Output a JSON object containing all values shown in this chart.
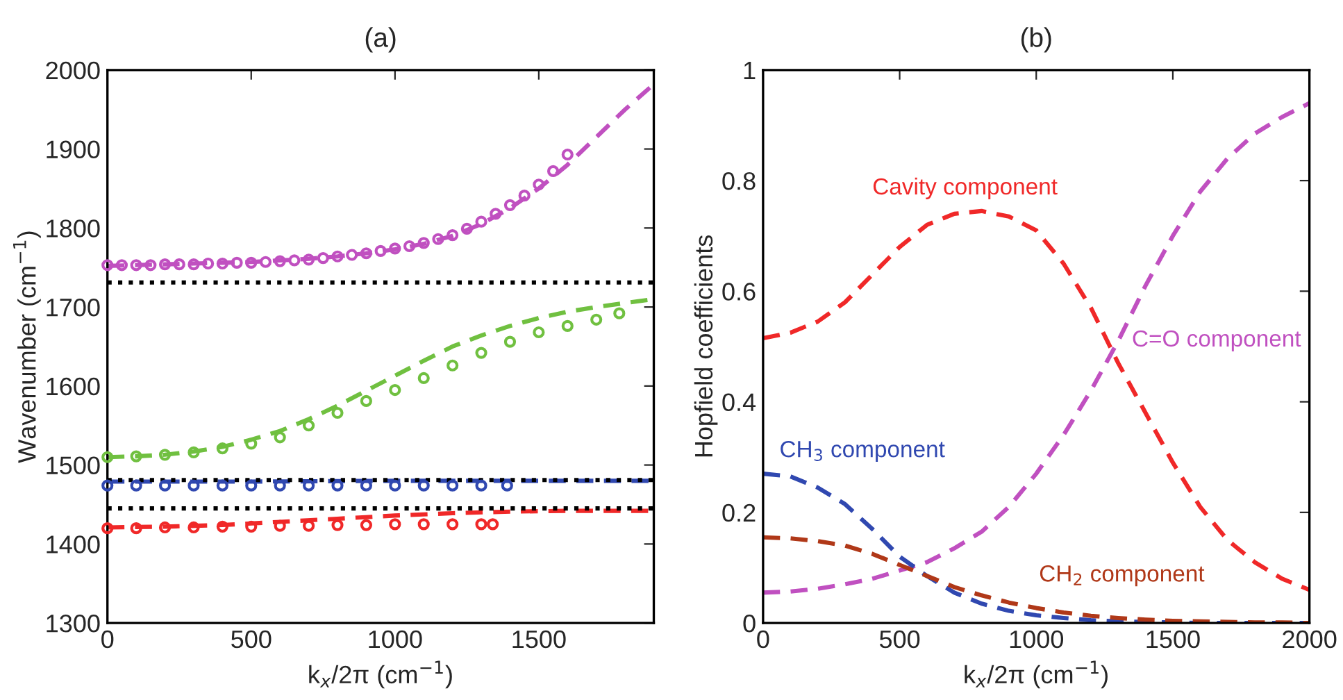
{
  "chart_data": [
    {
      "type": "line",
      "title": "(a)",
      "xlabel": "k$_{x}$/2π (cm$^{−1}$)",
      "ylabel": "Wavenumber (cm$^{−1}$)",
      "xlim": [
        0,
        1900
      ],
      "xticks": [
        0,
        500,
        1000,
        1500
      ],
      "ylim": [
        1300,
        2000
      ],
      "yticks": [
        1300,
        1400,
        1500,
        1600,
        1700,
        1800,
        1900,
        2000
      ],
      "grid": false,
      "legend": false,
      "ref_lines": [
        {
          "axis": "y",
          "value": 1731,
          "color": "#000000",
          "line_style": "dotted"
        },
        {
          "axis": "y",
          "value": 1481,
          "color": "#000000",
          "line_style": "dotted"
        },
        {
          "axis": "y",
          "value": 1445,
          "color": "#000000",
          "line_style": "dotted"
        }
      ],
      "series": [
        {
          "type": "line",
          "line_style": "dashed",
          "color": "#c050c0",
          "x": [
            0,
            100,
            200,
            300,
            400,
            500,
            600,
            700,
            800,
            900,
            1000,
            1100,
            1200,
            1300,
            1400,
            1500,
            1600,
            1700,
            1800,
            1900
          ],
          "values": [
            1752,
            1753,
            1754,
            1755,
            1756,
            1757,
            1759,
            1761,
            1764,
            1768,
            1773,
            1780,
            1790,
            1805,
            1825,
            1850,
            1880,
            1915,
            1950,
            1982
          ]
        },
        {
          "type": "line",
          "line_style": "dashed",
          "color": "#70c040",
          "x": [
            0,
            100,
            200,
            300,
            400,
            500,
            600,
            700,
            800,
            900,
            1000,
            1100,
            1200,
            1300,
            1400,
            1500,
            1600,
            1700,
            1800,
            1900
          ],
          "values": [
            1510,
            1511,
            1513,
            1517,
            1523,
            1532,
            1543,
            1558,
            1575,
            1594,
            1613,
            1632,
            1650,
            1664,
            1676,
            1686,
            1694,
            1700,
            1705,
            1710
          ]
        },
        {
          "type": "line",
          "line_style": "dashed",
          "color": "#3048b0",
          "x": [
            0,
            500,
            1000,
            1500,
            1900
          ],
          "values": [
            1479,
            1479,
            1480,
            1480,
            1480
          ]
        },
        {
          "type": "line",
          "line_style": "dashed",
          "color": "#f02828",
          "x": [
            0,
            200,
            400,
            600,
            800,
            1000,
            1200,
            1400,
            1600,
            1900
          ],
          "values": [
            1421,
            1422,
            1424,
            1428,
            1432,
            1436,
            1439,
            1441,
            1442,
            1442
          ]
        },
        {
          "type": "scatter",
          "marker": "circle",
          "color": "#c050c0",
          "x": [
            0,
            50,
            100,
            150,
            200,
            250,
            300,
            350,
            400,
            450,
            500,
            550,
            600,
            650,
            700,
            750,
            800,
            850,
            900,
            950,
            1000,
            1050,
            1100,
            1150,
            1200,
            1250,
            1300,
            1350,
            1400,
            1450,
            1500,
            1550,
            1600
          ],
          "values": [
            1753,
            1753,
            1753,
            1753,
            1754,
            1754,
            1754,
            1755,
            1755,
            1756,
            1756,
            1757,
            1758,
            1759,
            1760,
            1762,
            1764,
            1766,
            1768,
            1771,
            1774,
            1777,
            1781,
            1786,
            1791,
            1799,
            1808,
            1818,
            1829,
            1841,
            1855,
            1872,
            1893
          ]
        },
        {
          "type": "scatter",
          "marker": "circle",
          "color": "#70c040",
          "x": [
            0,
            100,
            200,
            300,
            400,
            500,
            600,
            700,
            800,
            900,
            1000,
            1100,
            1200,
            1300,
            1400,
            1500,
            1600,
            1700,
            1780
          ],
          "values": [
            1510,
            1511,
            1513,
            1516,
            1521,
            1527,
            1535,
            1550,
            1566,
            1581,
            1595,
            1610,
            1626,
            1642,
            1656,
            1668,
            1676,
            1684,
            1692
          ]
        },
        {
          "type": "scatter",
          "marker": "circle",
          "color": "#3048b0",
          "x": [
            0,
            100,
            200,
            300,
            400,
            500,
            600,
            700,
            800,
            900,
            1000,
            1100,
            1200,
            1300,
            1390
          ],
          "values": [
            1474,
            1474,
            1474,
            1474,
            1474,
            1474,
            1474,
            1474,
            1474,
            1474,
            1474,
            1474,
            1474,
            1474,
            1474
          ]
        },
        {
          "type": "scatter",
          "marker": "circle",
          "color": "#f02828",
          "x": [
            0,
            100,
            200,
            300,
            400,
            500,
            600,
            700,
            800,
            900,
            1000,
            1100,
            1200,
            1300,
            1340
          ],
          "values": [
            1420,
            1420,
            1421,
            1421,
            1422,
            1422,
            1423,
            1423,
            1424,
            1424,
            1425,
            1425,
            1425,
            1425,
            1425
          ]
        }
      ]
    },
    {
      "type": "line",
      "title": "(b)",
      "xlabel": "k$_{x}$/2π (cm$^{−1}$)",
      "ylabel": "Hopfield coefficients",
      "xlim": [
        0,
        2000
      ],
      "xticks": [
        0,
        500,
        1000,
        1500,
        2000
      ],
      "ylim": [
        0,
        1
      ],
      "yticks": [
        0,
        0.2,
        0.4,
        0.6,
        0.8,
        1
      ],
      "grid": false,
      "legend": false,
      "line_style": "dashed",
      "x": [
        0,
        100,
        200,
        300,
        400,
        500,
        600,
        700,
        800,
        900,
        1000,
        1100,
        1200,
        1300,
        1400,
        1500,
        1600,
        1700,
        1800,
        1900,
        2000
      ],
      "series": [
        {
          "name": "Cavity component",
          "color": "#f02828",
          "values": [
            0.515,
            0.525,
            0.545,
            0.58,
            0.63,
            0.68,
            0.72,
            0.74,
            0.745,
            0.735,
            0.71,
            0.65,
            0.57,
            0.47,
            0.38,
            0.29,
            0.21,
            0.15,
            0.11,
            0.08,
            0.06
          ]
        },
        {
          "name": "C=O component",
          "color": "#c050c0",
          "values": [
            0.055,
            0.057,
            0.062,
            0.07,
            0.08,
            0.095,
            0.11,
            0.135,
            0.165,
            0.21,
            0.27,
            0.34,
            0.42,
            0.51,
            0.61,
            0.7,
            0.78,
            0.84,
            0.885,
            0.915,
            0.94
          ]
        },
        {
          "name": "CH$_{3}$ component",
          "color": "#3048b0",
          "values": [
            0.27,
            0.265,
            0.245,
            0.215,
            0.17,
            0.12,
            0.085,
            0.055,
            0.035,
            0.022,
            0.014,
            0.009,
            0.005,
            0.003,
            0.002,
            0.001,
            0,
            0,
            0,
            0,
            0
          ]
        },
        {
          "name": "CH$_{2}$ component",
          "color": "#b03818",
          "values": [
            0.155,
            0.153,
            0.148,
            0.14,
            0.125,
            0.105,
            0.085,
            0.065,
            0.05,
            0.037,
            0.027,
            0.019,
            0.013,
            0.009,
            0.006,
            0.004,
            0.003,
            0.002,
            0.001,
            0.001,
            0
          ]
        }
      ]
    }
  ]
}
